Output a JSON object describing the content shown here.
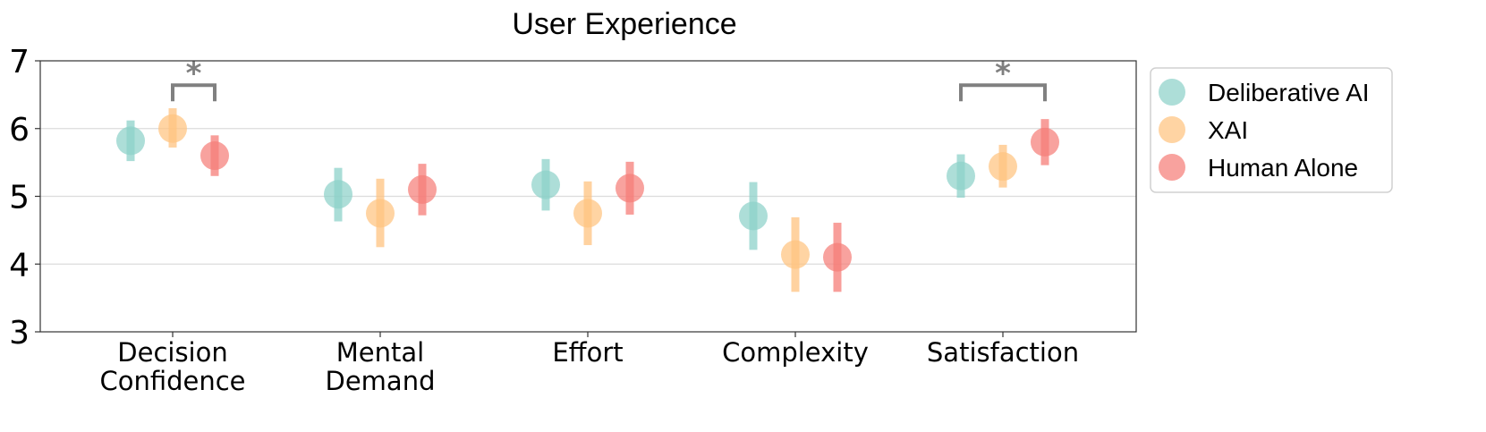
{
  "chart_data": {
    "type": "scatter",
    "title": "User Experience",
    "xlabel": "",
    "ylabel": "",
    "ylim": [
      3,
      7
    ],
    "yticks": [
      "3",
      "4",
      "5",
      "6",
      "7"
    ],
    "grid": "horizontal",
    "legend_position": "right",
    "categories": [
      [
        "Decision",
        "Confidence"
      ],
      [
        "Mental",
        "Demand"
      ],
      [
        "Effort"
      ],
      [
        "Complexity"
      ],
      [
        "Satisfaction"
      ]
    ],
    "series": [
      {
        "name": "Deliberative AI",
        "color": "#8ed1c9",
        "values": [
          5.82,
          5.03,
          5.17,
          4.71,
          5.3
        ],
        "lower": [
          5.52,
          4.63,
          4.79,
          4.21,
          4.98
        ],
        "upper": [
          6.12,
          5.42,
          5.55,
          5.21,
          5.62
        ]
      },
      {
        "name": "XAI",
        "color": "#ffc380",
        "values": [
          6.0,
          4.75,
          4.75,
          4.14,
          5.44
        ],
        "lower": [
          5.72,
          4.25,
          4.28,
          3.59,
          5.13
        ],
        "upper": [
          6.3,
          5.26,
          5.22,
          4.69,
          5.76
        ]
      },
      {
        "name": "Human Alone",
        "color": "#f57e78",
        "values": [
          5.6,
          5.1,
          5.12,
          4.1,
          5.8
        ],
        "lower": [
          5.3,
          4.72,
          4.73,
          3.59,
          5.46
        ],
        "upper": [
          5.9,
          5.48,
          5.51,
          4.61,
          6.14
        ]
      }
    ],
    "significance": [
      {
        "category": 0,
        "from_series": 1,
        "to_series": 2,
        "label": "*",
        "level": 6.64
      },
      {
        "category": 4,
        "from_series": 0,
        "to_series": 2,
        "label": "*",
        "level": 6.64
      }
    ]
  }
}
